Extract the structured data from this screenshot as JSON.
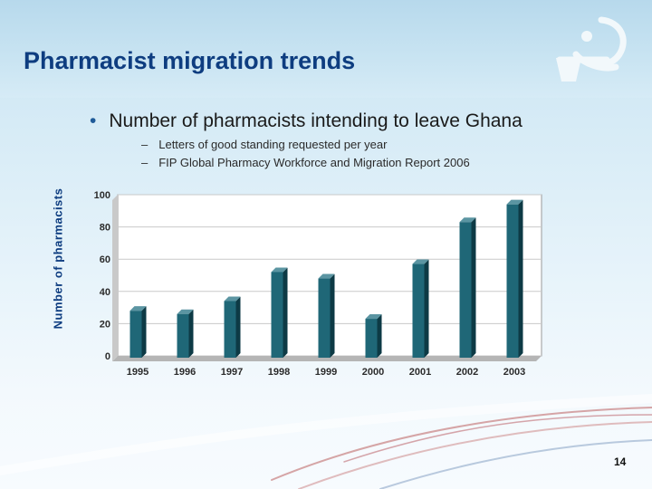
{
  "slide": {
    "title": "Pharmacist migration trends",
    "bullet": "Number of pharmacists intending to leave Ghana",
    "sub_bullets": [
      "Letters of good standing requested per year",
      "FIP Global Pharmacy Workforce and Migration Report 2006"
    ],
    "page_number": "14"
  },
  "logo": {
    "icon": "fip-pharmacy-logo-icon"
  },
  "colors": {
    "title": "#0e3d80",
    "bar_front": "#1f6777",
    "bar_side": "#0d3a45",
    "bar_top": "#5b95a2",
    "plot_bg": "#ffffff",
    "grid": "#c9c9c9"
  },
  "chart_data": {
    "type": "bar",
    "categories": [
      "1995",
      "1996",
      "1997",
      "1998",
      "1999",
      "2000",
      "2001",
      "2002",
      "2003"
    ],
    "values": [
      28,
      26,
      34,
      52,
      48,
      23,
      57,
      83,
      94
    ],
    "ylabel": "Number of pharmacists",
    "xlabel": "",
    "ylim": [
      0,
      100
    ],
    "yticks": [
      0,
      20,
      40,
      60,
      80,
      100
    ],
    "grid": true,
    "legend": "none"
  }
}
